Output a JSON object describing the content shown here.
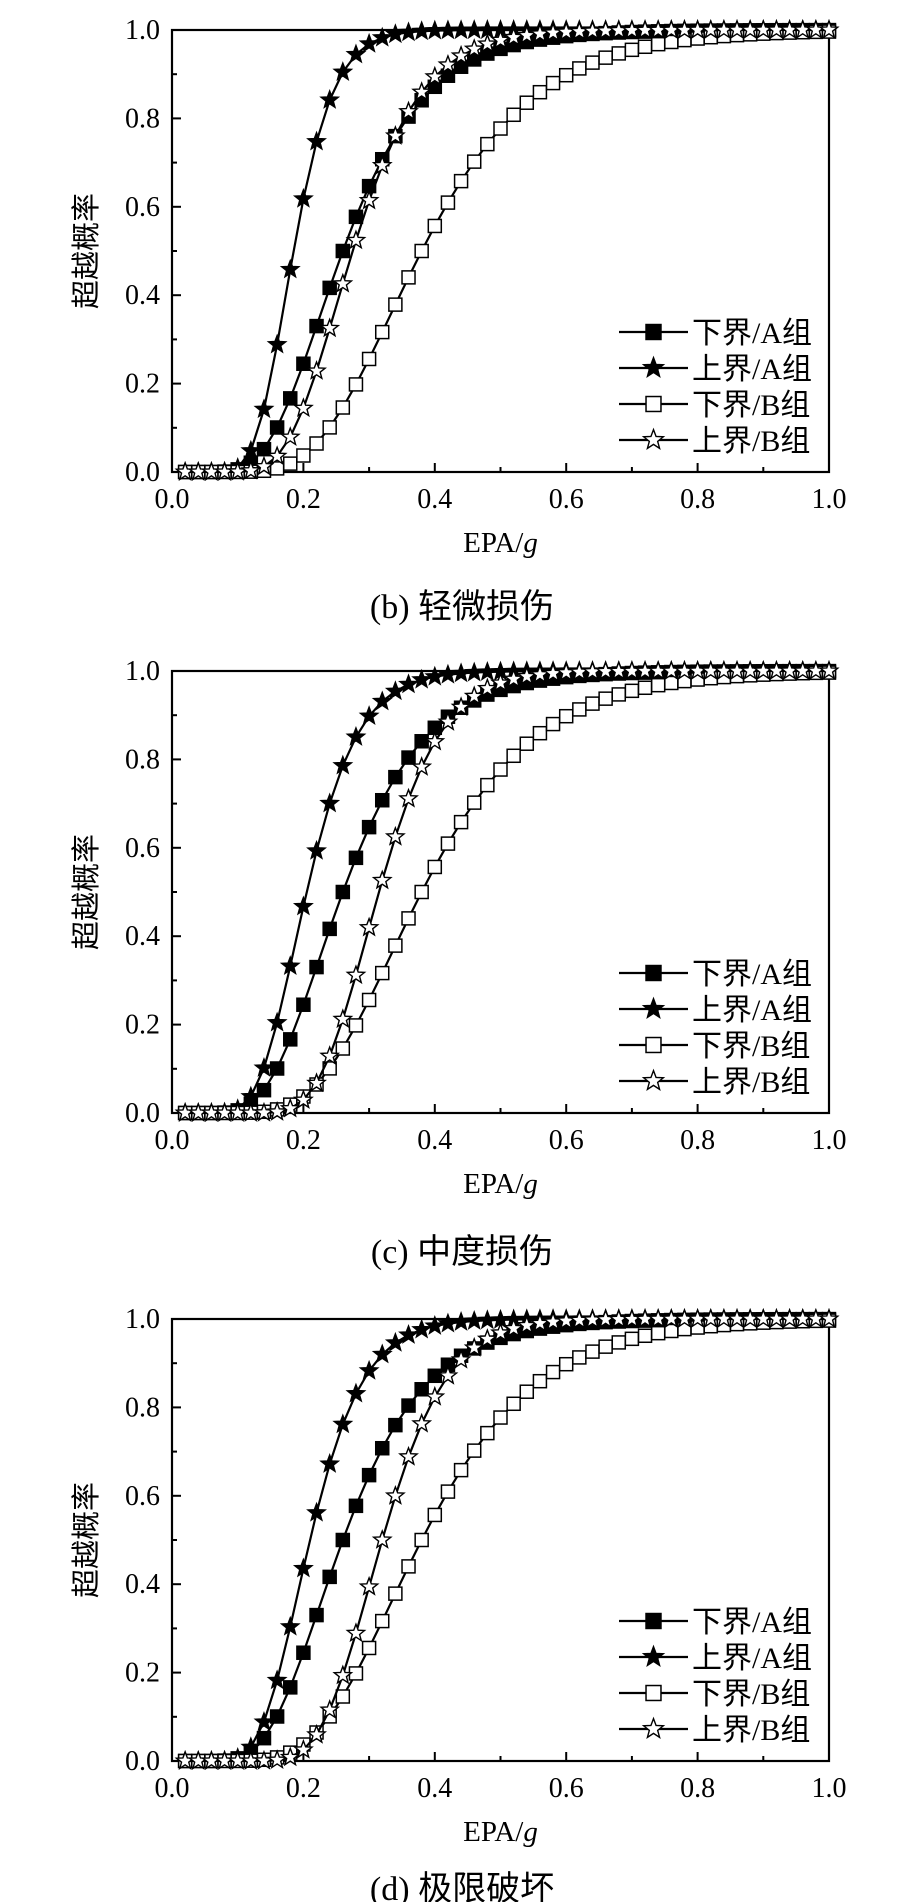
{
  "chart_data": [
    {
      "type": "line",
      "title": "",
      "caption": "(b)  轻微损伤",
      "xlabel": "EPA/g",
      "ylabel": "超越概率",
      "xlim": [
        0.0,
        1.0
      ],
      "ylim": [
        0.0,
        1.0
      ],
      "xticks": [
        "0.0",
        "0.2",
        "0.4",
        "0.6",
        "0.8",
        "1.0"
      ],
      "yticks": [
        "0.0",
        "0.2",
        "0.4",
        "0.6",
        "0.8",
        "1.0"
      ],
      "grid": false,
      "legend_position": "bottom-right",
      "series": [
        {
          "name": "下界/A组",
          "marker": "filled-square",
          "mu": 0.26,
          "beta": 0.38
        },
        {
          "name": "上界/A组",
          "marker": "filled-star",
          "mu": 0.185,
          "beta": 0.26
        },
        {
          "name": "下界/B组",
          "marker": "open-square",
          "mu": 0.38,
          "beta": 0.36
        },
        {
          "name": "上界/B组",
          "marker": "open-star",
          "mu": 0.275,
          "beta": 0.3
        }
      ]
    },
    {
      "type": "line",
      "title": "",
      "caption": "(c)  中度损伤",
      "xlabel": "EPA/g",
      "ylabel": "超越概率",
      "xlim": [
        0.0,
        1.0
      ],
      "ylim": [
        0.0,
        1.0
      ],
      "xticks": [
        "0.0",
        "0.2",
        "0.4",
        "0.6",
        "0.8",
        "1.0"
      ],
      "yticks": [
        "0.0",
        "0.2",
        "0.4",
        "0.6",
        "0.8",
        "1.0"
      ],
      "grid": false,
      "legend_position": "bottom-right",
      "series": [
        {
          "name": "下界/A组",
          "marker": "filled-square",
          "mu": 0.26,
          "beta": 0.38
        },
        {
          "name": "上界/A组",
          "marker": "filled-star",
          "mu": 0.205,
          "beta": 0.3
        },
        {
          "name": "下界/B组",
          "marker": "open-square",
          "mu": 0.38,
          "beta": 0.36
        },
        {
          "name": "上界/B组",
          "marker": "open-star",
          "mu": 0.315,
          "beta": 0.24
        }
      ]
    },
    {
      "type": "line",
      "title": "",
      "caption": "(d)  极限破坏",
      "xlabel": "EPA/g",
      "ylabel": "超越概率",
      "xlim": [
        0.0,
        1.0
      ],
      "ylim": [
        0.0,
        1.0
      ],
      "xticks": [
        "0.0",
        "0.2",
        "0.4",
        "0.6",
        "0.8",
        "1.0"
      ],
      "yticks": [
        "0.0",
        "0.2",
        "0.4",
        "0.6",
        "0.8",
        "1.0"
      ],
      "grid": false,
      "legend_position": "bottom-right",
      "series": [
        {
          "name": "下界/A组",
          "marker": "filled-square",
          "mu": 0.26,
          "beta": 0.38
        },
        {
          "name": "上界/A组",
          "marker": "filled-star",
          "mu": 0.21,
          "beta": 0.3
        },
        {
          "name": "下界/B组",
          "marker": "open-square",
          "mu": 0.38,
          "beta": 0.36
        },
        {
          "name": "上界/B组",
          "marker": "open-star",
          "mu": 0.32,
          "beta": 0.24
        }
      ]
    }
  ],
  "x_samples": [
    0.02,
    0.04,
    0.06,
    0.08,
    0.1,
    0.12,
    0.14,
    0.16,
    0.18,
    0.2,
    0.22,
    0.24,
    0.26,
    0.28,
    0.3,
    0.32,
    0.34,
    0.36,
    0.38,
    0.4,
    0.42,
    0.44,
    0.46,
    0.48,
    0.5,
    0.52,
    0.54,
    0.56,
    0.58,
    0.6,
    0.62,
    0.64,
    0.66,
    0.68,
    0.7,
    0.72,
    0.74,
    0.76,
    0.78,
    0.8,
    0.82,
    0.84,
    0.86,
    0.88,
    0.9,
    0.92,
    0.94,
    0.96,
    0.98,
    1.0
  ],
  "colors": {
    "line": "#000000",
    "fill": "#000000",
    "open": "#ffffff"
  }
}
